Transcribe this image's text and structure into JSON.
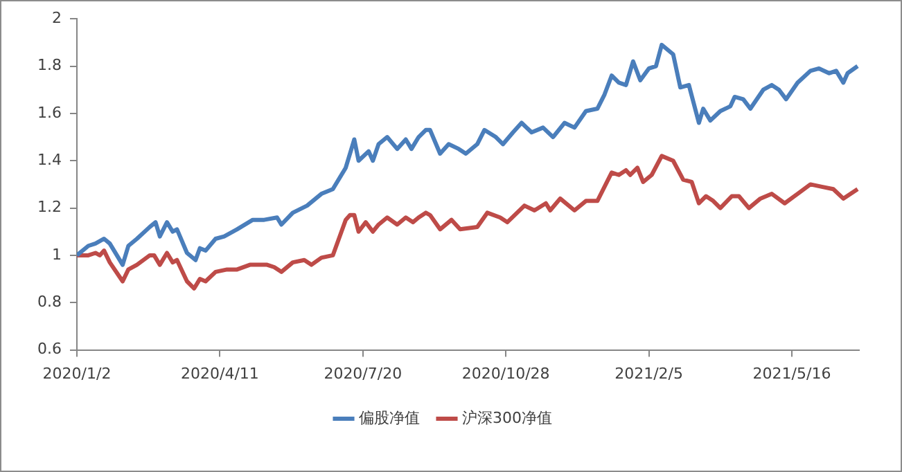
{
  "chart_data": {
    "type": "line",
    "xlim": [
      "2020-01-02",
      "2021-07-02"
    ],
    "xticks": [
      {
        "value": "2020-01-02",
        "label": "2020/1/2"
      },
      {
        "value": "2020-04-11",
        "label": "2020/4/11"
      },
      {
        "value": "2020-07-20",
        "label": "2020/7/20"
      },
      {
        "value": "2020-10-28",
        "label": "2020/10/28"
      },
      {
        "value": "2021-02-05",
        "label": "2021/2/5"
      },
      {
        "value": "2021-05-16",
        "label": "2021/5/16"
      }
    ],
    "ylim": [
      0.6,
      2
    ],
    "yticks": [
      0.6,
      0.8,
      1,
      1.2,
      1.4,
      1.6,
      1.8,
      2
    ],
    "grid": false,
    "legend": "bottom",
    "marker": "none",
    "line_style": "solid",
    "series": [
      {
        "name": "偏股净值",
        "color": "#4a7ebb",
        "x": [
          "2020-01-02",
          "2020-01-10",
          "2020-01-15",
          "2020-01-21",
          "2020-01-25",
          "2020-01-28",
          "2020-02-03",
          "2020-02-07",
          "2020-02-13",
          "2020-02-22",
          "2020-02-26",
          "2020-02-29",
          "2020-03-05",
          "2020-03-09",
          "2020-03-12",
          "2020-03-19",
          "2020-03-25",
          "2020-03-28",
          "2020-04-01",
          "2020-04-08",
          "2020-04-14",
          "2020-04-23",
          "2020-05-04",
          "2020-05-12",
          "2020-05-21",
          "2020-05-24",
          "2020-06-01",
          "2020-06-11",
          "2020-06-21",
          "2020-06-29",
          "2020-07-08",
          "2020-07-12",
          "2020-07-14",
          "2020-07-17",
          "2020-07-24",
          "2020-07-27",
          "2020-07-31",
          "2020-08-06",
          "2020-08-13",
          "2020-08-19",
          "2020-08-23",
          "2020-08-28",
          "2020-09-02",
          "2020-09-05",
          "2020-09-12",
          "2020-09-18",
          "2020-09-25",
          "2020-09-30",
          "2020-10-08",
          "2020-10-13",
          "2020-10-21",
          "2020-10-26",
          "2020-11-02",
          "2020-11-08",
          "2020-11-15",
          "2020-11-23",
          "2020-11-30",
          "2020-12-08",
          "2020-12-15",
          "2020-12-23",
          "2020-12-31",
          "2021-01-05",
          "2021-01-10",
          "2021-01-15",
          "2021-01-20",
          "2021-01-25",
          "2021-01-30",
          "2021-02-05",
          "2021-02-10",
          "2021-02-14",
          "2021-02-22",
          "2021-02-27",
          "2021-03-05",
          "2021-03-12",
          "2021-03-15",
          "2021-03-20",
          "2021-03-27",
          "2021-04-03",
          "2021-04-06",
          "2021-04-12",
          "2021-04-17",
          "2021-04-26",
          "2021-05-02",
          "2021-05-07",
          "2021-05-12",
          "2021-05-20",
          "2021-05-29",
          "2021-06-04",
          "2021-06-11",
          "2021-06-16",
          "2021-06-21",
          "2021-06-24",
          "2021-07-01"
        ],
        "values": [
          1.0,
          1.04,
          1.05,
          1.07,
          1.05,
          1.02,
          0.96,
          1.04,
          1.07,
          1.12,
          1.14,
          1.08,
          1.14,
          1.1,
          1.11,
          1.01,
          0.98,
          1.03,
          1.02,
          1.07,
          1.08,
          1.11,
          1.15,
          1.15,
          1.16,
          1.13,
          1.18,
          1.21,
          1.26,
          1.28,
          1.37,
          1.45,
          1.49,
          1.4,
          1.44,
          1.4,
          1.47,
          1.5,
          1.45,
          1.49,
          1.45,
          1.5,
          1.53,
          1.53,
          1.43,
          1.47,
          1.45,
          1.43,
          1.47,
          1.53,
          1.5,
          1.47,
          1.52,
          1.56,
          1.52,
          1.54,
          1.5,
          1.56,
          1.54,
          1.61,
          1.62,
          1.68,
          1.76,
          1.73,
          1.72,
          1.82,
          1.74,
          1.79,
          1.8,
          1.89,
          1.85,
          1.71,
          1.72,
          1.56,
          1.62,
          1.57,
          1.61,
          1.63,
          1.67,
          1.66,
          1.62,
          1.7,
          1.72,
          1.7,
          1.66,
          1.73,
          1.78,
          1.79,
          1.77,
          1.78,
          1.73,
          1.77,
          1.8
        ]
      },
      {
        "name": "沪深300净值",
        "color": "#be4b48",
        "x": [
          "2020-01-02",
          "2020-01-10",
          "2020-01-15",
          "2020-01-18",
          "2020-01-21",
          "2020-01-25",
          "2020-02-03",
          "2020-02-07",
          "2020-02-13",
          "2020-02-22",
          "2020-02-25",
          "2020-02-29",
          "2020-03-05",
          "2020-03-09",
          "2020-03-12",
          "2020-03-19",
          "2020-03-24",
          "2020-03-28",
          "2020-04-01",
          "2020-04-08",
          "2020-04-16",
          "2020-04-23",
          "2020-05-02",
          "2020-05-14",
          "2020-05-19",
          "2020-05-24",
          "2020-06-01",
          "2020-06-09",
          "2020-06-14",
          "2020-06-21",
          "2020-06-29",
          "2020-07-08",
          "2020-07-11",
          "2020-07-14",
          "2020-07-17",
          "2020-07-22",
          "2020-07-27",
          "2020-07-31",
          "2020-08-06",
          "2020-08-13",
          "2020-08-19",
          "2020-08-24",
          "2020-08-28",
          "2020-09-02",
          "2020-09-05",
          "2020-09-12",
          "2020-09-20",
          "2020-09-26",
          "2020-10-08",
          "2020-10-15",
          "2020-10-24",
          "2020-10-29",
          "2020-11-10",
          "2020-11-17",
          "2020-11-25",
          "2020-11-28",
          "2020-12-05",
          "2020-12-15",
          "2020-12-23",
          "2020-12-31",
          "2021-01-10",
          "2021-01-15",
          "2021-01-20",
          "2021-01-23",
          "2021-01-28",
          "2021-02-01",
          "2021-02-07",
          "2021-02-14",
          "2021-02-22",
          "2021-03-01",
          "2021-03-07",
          "2021-03-12",
          "2021-03-17",
          "2021-03-22",
          "2021-03-27",
          "2021-04-04",
          "2021-04-09",
          "2021-04-16",
          "2021-04-24",
          "2021-05-02",
          "2021-05-11",
          "2021-05-20",
          "2021-05-29",
          "2021-06-06",
          "2021-06-14",
          "2021-06-21",
          "2021-07-01"
        ],
        "values": [
          1.0,
          1.0,
          1.01,
          1.0,
          1.02,
          0.97,
          0.89,
          0.94,
          0.96,
          1.0,
          1.0,
          0.96,
          1.01,
          0.97,
          0.98,
          0.89,
          0.86,
          0.9,
          0.89,
          0.93,
          0.94,
          0.94,
          0.96,
          0.96,
          0.95,
          0.93,
          0.97,
          0.98,
          0.96,
          0.99,
          1.0,
          1.15,
          1.17,
          1.17,
          1.1,
          1.14,
          1.1,
          1.13,
          1.16,
          1.13,
          1.16,
          1.14,
          1.16,
          1.18,
          1.17,
          1.11,
          1.15,
          1.11,
          1.12,
          1.18,
          1.16,
          1.14,
          1.21,
          1.19,
          1.22,
          1.19,
          1.24,
          1.19,
          1.23,
          1.23,
          1.35,
          1.34,
          1.36,
          1.34,
          1.37,
          1.31,
          1.34,
          1.42,
          1.4,
          1.32,
          1.31,
          1.22,
          1.25,
          1.23,
          1.2,
          1.25,
          1.25,
          1.2,
          1.24,
          1.26,
          1.22,
          1.26,
          1.3,
          1.29,
          1.28,
          1.24,
          1.28
        ]
      }
    ]
  }
}
